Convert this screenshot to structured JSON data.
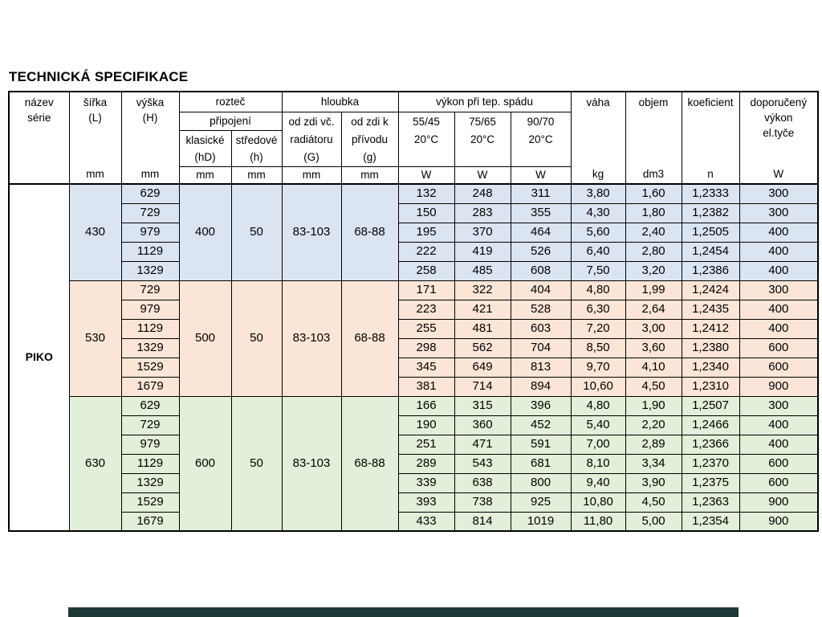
{
  "title": "TECHNICKÁ SPECIFIKACE",
  "series_name": "PIKO",
  "colors": {
    "group_430": "#dbe5f1",
    "group_530": "#fbe5d6",
    "group_630": "#e2efd9",
    "bottom_bar": "#1e3836",
    "border": "#000000"
  },
  "header": {
    "nazev": {
      "l1": "název",
      "l2": "série"
    },
    "sirka": {
      "l1": "šířka",
      "l2": "(L)",
      "unit": "mm"
    },
    "vyska": {
      "l1": "výška",
      "l2": "(H)",
      "unit": "mm"
    },
    "roztec": {
      "title": "rozteč",
      "subtitle": "připojení",
      "klasicke": {
        "l1": "klasické",
        "l2": "(hD)",
        "unit": "mm"
      },
      "stredove": {
        "l1": "středové",
        "l2": "(h)",
        "unit": "mm"
      }
    },
    "hloubka": {
      "title": "hloubka",
      "od_zdi_vc": {
        "l1": "od zdi vč.",
        "l2": "radiátoru",
        "l3": "(G)",
        "unit": "mm"
      },
      "od_zdi_k": {
        "l1": "od zdi k",
        "l2": "přívodu",
        "l3": "(g)",
        "unit": "mm"
      }
    },
    "vykon": {
      "title": "výkon při tep. spádu",
      "c1": {
        "l1": "55/45",
        "l2": "20°C",
        "unit": "W"
      },
      "c2": {
        "l1": "75/65",
        "l2": "20°C",
        "unit": "W"
      },
      "c3": {
        "l1": "90/70",
        "l2": "20°C",
        "unit": "W"
      }
    },
    "vaha": {
      "l1": "váha",
      "unit": "kg"
    },
    "objem": {
      "l1": "objem",
      "unit": "dm3"
    },
    "koeficient": {
      "l1": "koeficient",
      "unit": "n"
    },
    "doporuceny": {
      "l1": "doporučený",
      "l2": "výkon",
      "l3": "el.tyče",
      "unit": "W"
    }
  },
  "groups": [
    {
      "color": "#dbe5f1",
      "width": "430",
      "pitch_classic": "400",
      "pitch_center": "50",
      "depth_incl_radiator": "83-103",
      "depth_to_supply": "68-88",
      "rows": [
        {
          "height": "629",
          "power_5545": "132",
          "power_7565": "248",
          "power_9070": "311",
          "weight": "3,80",
          "volume": "1,60",
          "coefficient": "1,2333",
          "recommended_power": "300"
        },
        {
          "height": "729",
          "power_5545": "150",
          "power_7565": "283",
          "power_9070": "355",
          "weight": "4,30",
          "volume": "1,80",
          "coefficient": "1,2382",
          "recommended_power": "300"
        },
        {
          "height": "979",
          "power_5545": "195",
          "power_7565": "370",
          "power_9070": "464",
          "weight": "5,60",
          "volume": "2,40",
          "coefficient": "1,2505",
          "recommended_power": "400"
        },
        {
          "height": "1129",
          "power_5545": "222",
          "power_7565": "419",
          "power_9070": "526",
          "weight": "6,40",
          "volume": "2,80",
          "coefficient": "1,2454",
          "recommended_power": "400"
        },
        {
          "height": "1329",
          "power_5545": "258",
          "power_7565": "485",
          "power_9070": "608",
          "weight": "7,50",
          "volume": "3,20",
          "coefficient": "1,2386",
          "recommended_power": "400"
        }
      ]
    },
    {
      "color": "#fbe5d6",
      "width": "530",
      "pitch_classic": "500",
      "pitch_center": "50",
      "depth_incl_radiator": "83-103",
      "depth_to_supply": "68-88",
      "rows": [
        {
          "height": "729",
          "power_5545": "171",
          "power_7565": "322",
          "power_9070": "404",
          "weight": "4,80",
          "volume": "1,99",
          "coefficient": "1,2424",
          "recommended_power": "300"
        },
        {
          "height": "979",
          "power_5545": "223",
          "power_7565": "421",
          "power_9070": "528",
          "weight": "6,30",
          "volume": "2,64",
          "coefficient": "1,2435",
          "recommended_power": "400"
        },
        {
          "height": "1129",
          "power_5545": "255",
          "power_7565": "481",
          "power_9070": "603",
          "weight": "7,20",
          "volume": "3,00",
          "coefficient": "1,2412",
          "recommended_power": "400"
        },
        {
          "height": "1329",
          "power_5545": "298",
          "power_7565": "562",
          "power_9070": "704",
          "weight": "8,50",
          "volume": "3,60",
          "coefficient": "1,2380",
          "recommended_power": "600"
        },
        {
          "height": "1529",
          "power_5545": "345",
          "power_7565": "649",
          "power_9070": "813",
          "weight": "9,70",
          "volume": "4,10",
          "coefficient": "1,2340",
          "recommended_power": "600"
        },
        {
          "height": "1679",
          "power_5545": "381",
          "power_7565": "714",
          "power_9070": "894",
          "weight": "10,60",
          "volume": "4,50",
          "coefficient": "1,2310",
          "recommended_power": "900"
        }
      ]
    },
    {
      "color": "#e2efd9",
      "width": "630",
      "pitch_classic": "600",
      "pitch_center": "50",
      "depth_incl_radiator": "83-103",
      "depth_to_supply": "68-88",
      "rows": [
        {
          "height": "629",
          "power_5545": "166",
          "power_7565": "315",
          "power_9070": "396",
          "weight": "4,80",
          "volume": "1,90",
          "coefficient": "1,2507",
          "recommended_power": "300"
        },
        {
          "height": "729",
          "power_5545": "190",
          "power_7565": "360",
          "power_9070": "452",
          "weight": "5,40",
          "volume": "2,20",
          "coefficient": "1,2466",
          "recommended_power": "400"
        },
        {
          "height": "979",
          "power_5545": "251",
          "power_7565": "471",
          "power_9070": "591",
          "weight": "7,00",
          "volume": "2,89",
          "coefficient": "1,2366",
          "recommended_power": "400"
        },
        {
          "height": "1129",
          "power_5545": "289",
          "power_7565": "543",
          "power_9070": "681",
          "weight": "8,10",
          "volume": "3,34",
          "coefficient": "1,2370",
          "recommended_power": "600"
        },
        {
          "height": "1329",
          "power_5545": "339",
          "power_7565": "638",
          "power_9070": "800",
          "weight": "9,40",
          "volume": "3,90",
          "coefficient": "1,2375",
          "recommended_power": "600"
        },
        {
          "height": "1529",
          "power_5545": "393",
          "power_7565": "738",
          "power_9070": "925",
          "weight": "10,80",
          "volume": "4,50",
          "coefficient": "1,2363",
          "recommended_power": "900"
        },
        {
          "height": "1679",
          "power_5545": "433",
          "power_7565": "814",
          "power_9070": "1019",
          "weight": "11,80",
          "volume": "5,00",
          "coefficient": "1,2354",
          "recommended_power": "900"
        }
      ]
    }
  ]
}
